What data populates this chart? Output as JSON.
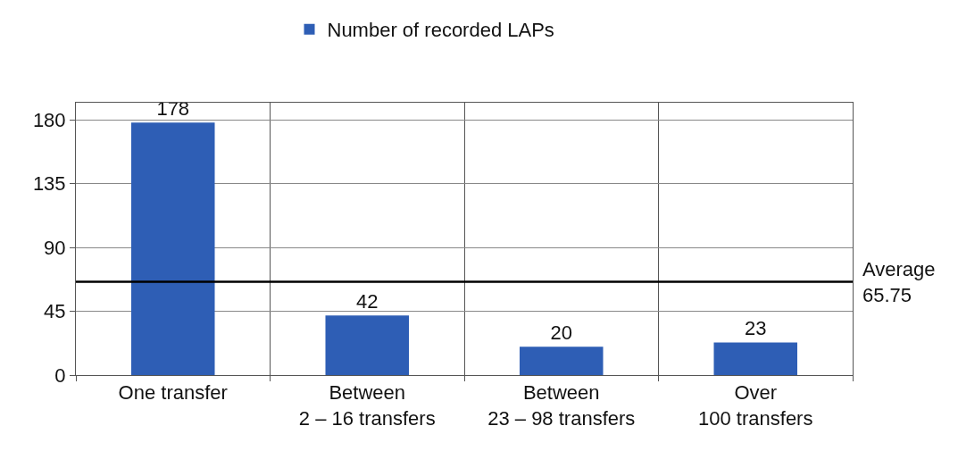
{
  "chart_data": {
    "type": "bar",
    "categories": [
      "One transfer",
      "Between\n2 – 16 transfers",
      "Between\n23 – 98 transfers",
      "Over\n100 transfers"
    ],
    "series": [
      {
        "name": "Number of recorded LAPs",
        "color": "#2e5eb5",
        "values": [
          178,
          42,
          20,
          23
        ]
      }
    ],
    "ylim": [
      0,
      192
    ],
    "yticks": [
      0,
      45,
      90,
      135,
      180
    ],
    "grid": true,
    "legend": "top",
    "data_labels": true,
    "ref_lines": [
      {
        "axis": "y",
        "value": 65.75,
        "label": "Average\n65.75",
        "color": "#000000"
      }
    ]
  }
}
